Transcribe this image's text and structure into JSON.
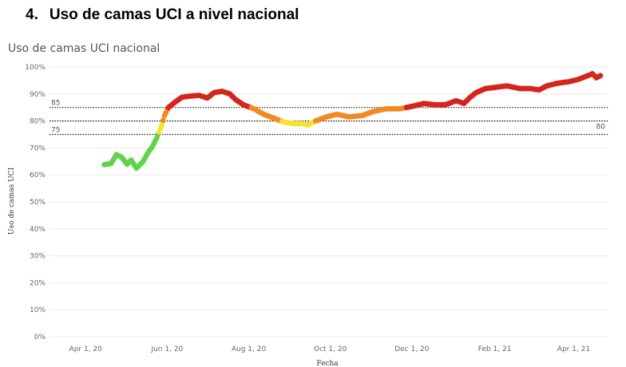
{
  "section": {
    "number": "4.",
    "title": "Uso de camas UCI a nivel nacional"
  },
  "chart_data": {
    "type": "scatter",
    "title": "Uso de camas UCI nacional",
    "xlabel": "Fecha",
    "ylabel": "Uso de camas UCI",
    "x_ticks": [
      "Apr 1, 20",
      "Jun 1, 20",
      "Aug 1, 20",
      "Oct 1, 20",
      "Dec 1, 20",
      "Feb 1, 21",
      "Apr 1, 21"
    ],
    "x_range": [
      "2020-03-05",
      "2021-04-27"
    ],
    "ylim": [
      0,
      100
    ],
    "y_ticks": [
      "0%",
      "10%",
      "20%",
      "30%",
      "40%",
      "50%",
      "60%",
      "70%",
      "80%",
      "90%",
      "100%"
    ],
    "grid": true,
    "reference_lines": [
      {
        "value": 85,
        "label": "85",
        "label_side": "left"
      },
      {
        "value": 80,
        "label": "80",
        "label_side": "right"
      },
      {
        "value": 75,
        "label": "75",
        "label_side": "left"
      }
    ],
    "color_scale": [
      {
        "max": 75,
        "color": "#5fd34c"
      },
      {
        "max": 80,
        "color": "#f5e331"
      },
      {
        "max": 85,
        "color": "#f28a23"
      },
      {
        "max": 101,
        "color": "#d6251c"
      }
    ],
    "series_keypoints": [
      [
        "2020-04-15",
        63.8
      ],
      [
        "2020-04-20",
        64.2
      ],
      [
        "2020-04-24",
        67.5
      ],
      [
        "2020-04-28",
        66.5
      ],
      [
        "2020-05-02",
        64.0
      ],
      [
        "2020-05-05",
        65.5
      ],
      [
        "2020-05-09",
        62.5
      ],
      [
        "2020-05-14",
        65.0
      ],
      [
        "2020-05-18",
        68.5
      ],
      [
        "2020-05-21",
        70.5
      ],
      [
        "2020-05-24",
        73.5
      ],
      [
        "2020-05-26",
        76.0
      ],
      [
        "2020-05-28",
        78.5
      ],
      [
        "2020-05-30",
        82.0
      ],
      [
        "2020-06-02",
        85.0
      ],
      [
        "2020-06-07",
        87.0
      ],
      [
        "2020-06-12",
        88.8
      ],
      [
        "2020-06-18",
        89.2
      ],
      [
        "2020-06-25",
        89.5
      ],
      [
        "2020-07-01",
        88.5
      ],
      [
        "2020-07-06",
        90.5
      ],
      [
        "2020-07-12",
        91.0
      ],
      [
        "2020-07-18",
        90.0
      ],
      [
        "2020-07-22",
        88.0
      ],
      [
        "2020-07-28",
        86.0
      ],
      [
        "2020-08-05",
        84.5
      ],
      [
        "2020-08-12",
        82.5
      ],
      [
        "2020-08-20",
        81.0
      ],
      [
        "2020-08-28",
        79.5
      ],
      [
        "2020-09-05",
        79.0
      ],
      [
        "2020-09-10",
        79.0
      ],
      [
        "2020-09-14",
        78.5
      ],
      [
        "2020-09-20",
        80.0
      ],
      [
        "2020-09-28",
        81.5
      ],
      [
        "2020-10-06",
        82.5
      ],
      [
        "2020-10-15",
        81.5
      ],
      [
        "2020-10-25",
        82.0
      ],
      [
        "2020-11-02",
        83.5
      ],
      [
        "2020-11-12",
        84.5
      ],
      [
        "2020-11-22",
        84.5
      ],
      [
        "2020-12-02",
        85.5
      ],
      [
        "2020-12-10",
        86.5
      ],
      [
        "2020-12-18",
        86.0
      ],
      [
        "2020-12-26",
        86.0
      ],
      [
        "2021-01-03",
        87.5
      ],
      [
        "2021-01-09",
        86.5
      ],
      [
        "2021-01-13",
        88.5
      ],
      [
        "2021-01-18",
        90.5
      ],
      [
        "2021-01-25",
        92.0
      ],
      [
        "2021-02-02",
        92.5
      ],
      [
        "2021-02-10",
        93.0
      ],
      [
        "2021-02-20",
        92.0
      ],
      [
        "2021-02-28",
        92.0
      ],
      [
        "2021-03-06",
        91.5
      ],
      [
        "2021-03-12",
        93.0
      ],
      [
        "2021-03-20",
        94.0
      ],
      [
        "2021-03-28",
        94.5
      ],
      [
        "2021-04-05",
        95.5
      ],
      [
        "2021-04-10",
        96.5
      ],
      [
        "2021-04-15",
        97.5
      ],
      [
        "2021-04-18",
        96.0
      ],
      [
        "2021-04-21",
        96.8
      ]
    ]
  }
}
